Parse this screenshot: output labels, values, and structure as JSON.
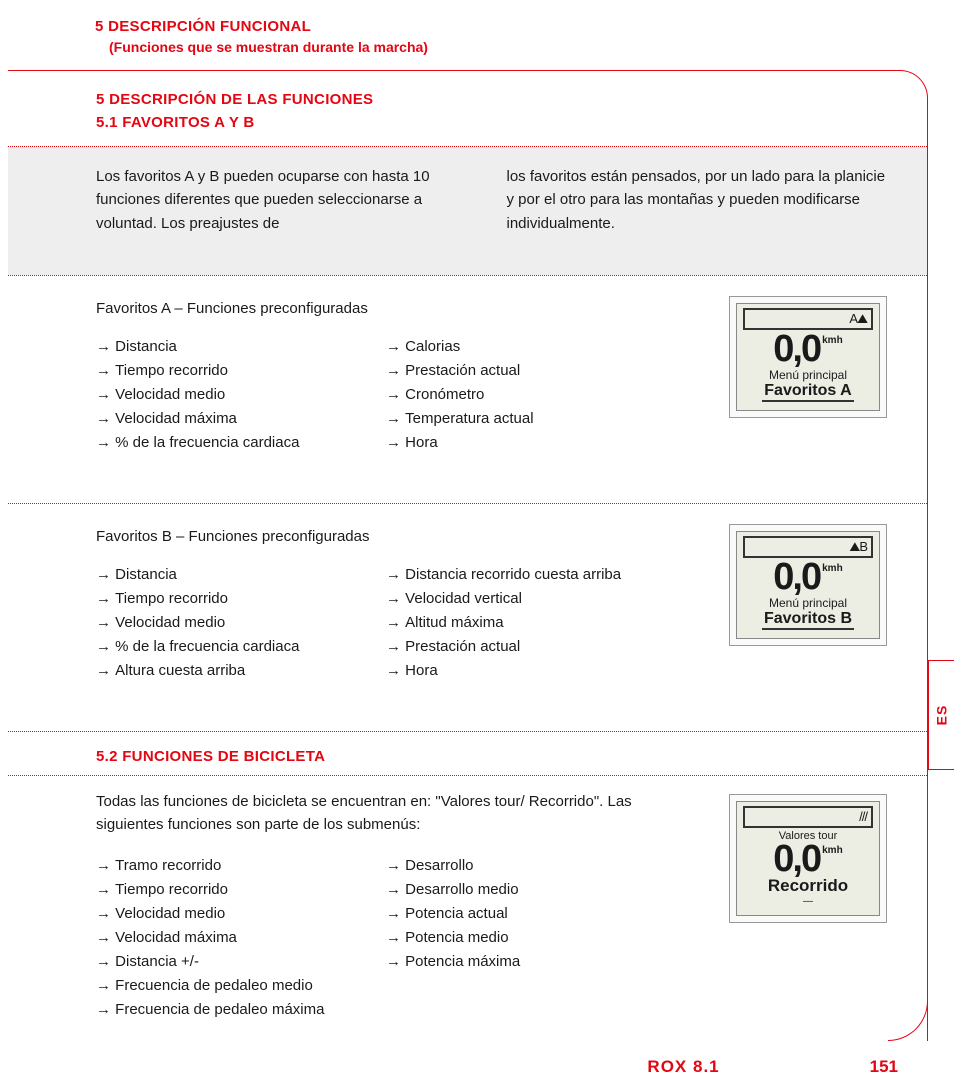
{
  "colors": {
    "accent": "#e30613",
    "gray_bg": "#eeeeee",
    "lcd_bg": "#eceee4",
    "text": "#1a1a1a"
  },
  "header": {
    "title": "5 DESCRIPCIÓN FUNCIONAL",
    "subtitle": "(Funciones que se muestran durante la marcha)"
  },
  "section5": {
    "heading1": "5 DESCRIPCIÓN DE LAS FUNCIONES",
    "heading2": "5.1 FAVORITOS A Y B",
    "intro_left": "Los favoritos A y B pueden ocuparse con hasta 10 funciones diferentes que pueden seleccionarse a voluntad. Los preajustes de",
    "intro_right": "los favoritos están pensados, por un lado para la planicie y por el otro para las montañas y pueden modificarse individualmente."
  },
  "favA": {
    "title": "Favoritos A – Funciones preconfiguradas",
    "col1": [
      "Distancia",
      "Tiempo recorrido",
      "Velocidad medio",
      "Velocidad máxima",
      "% de la frecuencia cardiaca"
    ],
    "col2": [
      "Calorias",
      "Prestación actual",
      "Cronómetro",
      "Temperatura actual",
      "Hora"
    ],
    "lcd": {
      "top_icon": "A⛰",
      "speed": "0,0",
      "unit": "kmh",
      "menu": "Menú principal",
      "label": "Favoritos A"
    }
  },
  "favB": {
    "title": "Favoritos B – Funciones preconfiguradas",
    "col1": [
      "Distancia",
      "Tiempo recorrido",
      "Velocidad medio",
      "% de la frecuencia cardiaca",
      "Altura cuesta arriba"
    ],
    "col2": [
      "Distancia recorrido cuesta arriba",
      "Velocidad vertical",
      "Altitud máxima",
      "Prestación actual",
      "Hora"
    ],
    "lcd": {
      "top_icon": "⛰B",
      "speed": "0,0",
      "unit": "kmh",
      "menu": "Menú principal",
      "label": "Favoritos B"
    }
  },
  "section52": {
    "heading": "5.2 FUNCIONES DE BICICLETA",
    "intro": "Todas las funciones de bicicleta se encuentran en: \"Valores tour/ Recorrido\". Las siguientes funciones son parte de los submenús:",
    "col1": [
      "Tramo recorrido",
      "Tiempo recorrido",
      "Velocidad medio",
      "Velocidad máxima",
      "Distancia +/-",
      "Frecuencia de pedaleo medio",
      "Frecuencia de pedaleo máxima"
    ],
    "col2": [
      "Desarrollo",
      "Desarrollo medio",
      "Potencia actual",
      "Potencia medio",
      "Potencia máxima"
    ],
    "lcd": {
      "top_icon": "///",
      "line1": "Valores tour",
      "speed": "0,0",
      "unit": "kmh",
      "label": "Recorrido"
    }
  },
  "sidetab": "ES",
  "footer": {
    "model": "ROX 8.1",
    "page": "151"
  }
}
